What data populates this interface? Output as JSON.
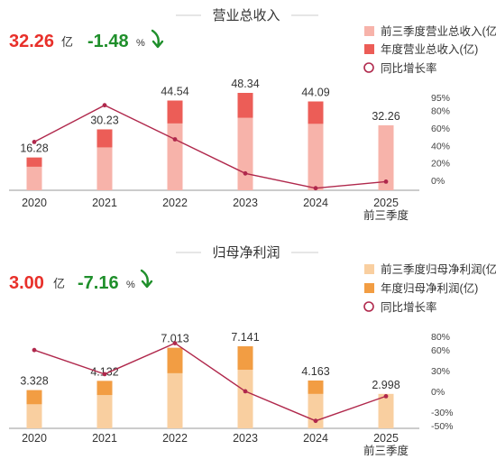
{
  "chart_data": [
    {
      "type": "bar",
      "title": "营业总收入",
      "headline": {
        "value": "32.26",
        "unit": "亿",
        "change": "-1.48",
        "change_unit": "%"
      },
      "categories": [
        "2020",
        "2021",
        "2022",
        "2023",
        "2024",
        "2025"
      ],
      "category_sub": [
        "",
        "",
        "",
        "",
        "",
        "前三季度"
      ],
      "series": [
        {
          "name": "前三季度营业总收入(亿)",
          "type": "bar",
          "values": [
            11.7,
            21.3,
            33.2,
            36.0,
            33.0,
            32.26
          ]
        },
        {
          "name": "年度营业总收入(亿)",
          "type": "bar",
          "values": [
            16.28,
            30.23,
            44.54,
            48.34,
            44.09,
            null
          ]
        },
        {
          "name": "同比增长率",
          "type": "line",
          "axis": "right",
          "values": [
            44,
            86,
            47,
            8,
            -9,
            -1.48
          ]
        }
      ],
      "value_labels": [
        "16.28",
        "30.23",
        "44.54",
        "48.34",
        "44.09",
        "32.26"
      ],
      "y_right_ticks": [
        "95%",
        "80%",
        "60%",
        "40%",
        "20%",
        "0%"
      ],
      "y_right_values": [
        95,
        80,
        60,
        40,
        20,
        0
      ],
      "colors": {
        "partial": "#f7b3aa",
        "annual": "#ec5d57",
        "line": "#b0284c"
      }
    },
    {
      "type": "bar",
      "title": "归母净利润",
      "headline": {
        "value": "3.00",
        "unit": "亿",
        "change": "-7.16",
        "change_unit": "%"
      },
      "categories": [
        "2020",
        "2021",
        "2022",
        "2023",
        "2024",
        "2025"
      ],
      "category_sub": [
        "",
        "",
        "",
        "",
        "",
        "前三季度"
      ],
      "series": [
        {
          "name": "前三季度归母净利润(亿)",
          "type": "bar",
          "values": [
            2.1,
            2.9,
            4.8,
            5.1,
            3.0,
            2.998
          ]
        },
        {
          "name": "年度归母净利润(亿)",
          "type": "bar",
          "values": [
            3.328,
            4.132,
            7.013,
            7.141,
            4.163,
            null
          ]
        },
        {
          "name": "同比增长率",
          "type": "line",
          "axis": "right",
          "values": [
            60,
            25,
            70,
            0,
            -43,
            -7.16
          ]
        }
      ],
      "value_labels": [
        "3.328",
        "4.132",
        "7.013",
        "7.141",
        "4.163",
        "2.998"
      ],
      "y_right_ticks": [
        "80%",
        "60%",
        "30%",
        "0%",
        "-30%",
        "-50%"
      ],
      "y_right_values": [
        80,
        60,
        30,
        0,
        -30,
        -50
      ],
      "colors": {
        "partial": "#f9cfa0",
        "annual": "#f29d43",
        "line": "#b0284c"
      }
    }
  ]
}
